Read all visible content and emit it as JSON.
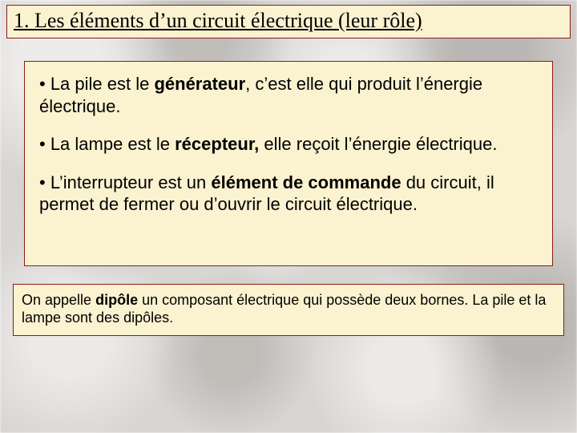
{
  "colors": {
    "box_bg": "#fbf2d0",
    "box_border": "#8a1a1a",
    "text": "#000000"
  },
  "title": "1. Les éléments d’un circuit électrique (leur rôle)",
  "body": {
    "bullets": [
      {
        "pre": "•   La pile est le ",
        "bold": "générateur",
        "post": ", c’est elle qui produit l’énergie électrique."
      },
      {
        "pre": "•   La lampe est le ",
        "bold": "récepteur,",
        "post": " elle reçoit l’énergie électrique."
      },
      {
        "pre": "•   L’interrupteur est un ",
        "bold": "élément de commande",
        "post": " du circuit, il permet de fermer ou d’ouvrir le circuit électrique."
      }
    ]
  },
  "footer": {
    "pre": "On appelle ",
    "bold": "dipôle",
    "post": " un composant électrique qui possède deux bornes. La pile et la lampe sont des dipôles."
  }
}
